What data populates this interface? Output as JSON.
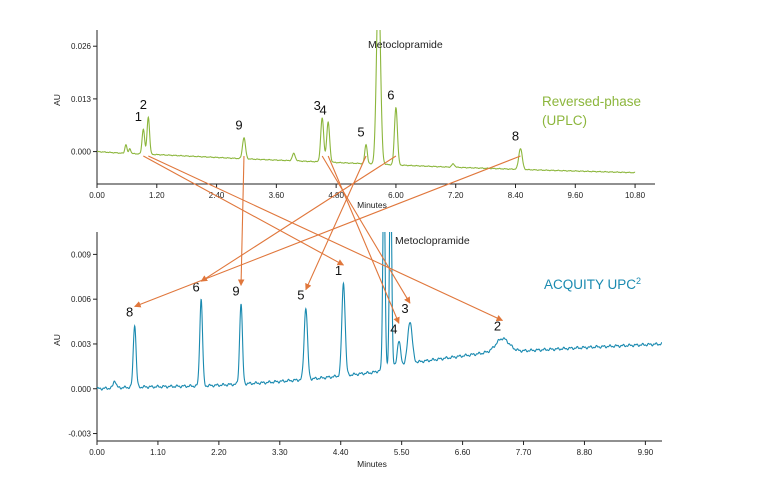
{
  "chart_data": [
    {
      "type": "line",
      "method_label_line1": "Reversed-phase",
      "method_label_line2": "(UPLC)",
      "color": "#8cb63c",
      "xlabel": "Minutes",
      "ylabel": "AU",
      "xlim": [
        0,
        11.2
      ],
      "ylim": [
        -0.008,
        0.03
      ],
      "x_ticks": [
        "0.00",
        "1.20",
        "2.40",
        "3.60",
        "4.80",
        "6.00",
        "7.20",
        "8.40",
        "9.60",
        "10.80"
      ],
      "y_ticks": [
        "0.026",
        "0.013",
        "0.000"
      ],
      "y_tick_values": [
        0.026,
        0.013,
        0.0
      ],
      "annotation": "Metoclopramide",
      "baseline": [
        [
          0,
          0
        ],
        [
          0.5,
          -0.0004
        ],
        [
          1.3,
          -0.0008
        ],
        [
          3,
          -0.0018
        ],
        [
          5,
          -0.0028
        ],
        [
          7,
          -0.0038
        ],
        [
          9,
          -0.0046
        ],
        [
          10.8,
          -0.0052
        ]
      ],
      "peaks": [
        {
          "label": "",
          "x": 0.58,
          "h": 0.0022,
          "w": 0.02
        },
        {
          "label": "",
          "x": 0.66,
          "h": 0.0012,
          "w": 0.02
        },
        {
          "label": "1",
          "x": 0.93,
          "h": 0.0062,
          "w": 0.025
        },
        {
          "label": "2",
          "x": 1.03,
          "h": 0.0092,
          "w": 0.025
        },
        {
          "label": "9",
          "x": 2.95,
          "h": 0.0052,
          "w": 0.03
        },
        {
          "label": "",
          "x": 3.95,
          "h": 0.0018,
          "w": 0.03
        },
        {
          "label": "3",
          "x": 4.52,
          "h": 0.0108,
          "w": 0.03
        },
        {
          "label": "4",
          "x": 4.64,
          "h": 0.0098,
          "w": 0.03
        },
        {
          "label": "5",
          "x": 5.4,
          "h": 0.0048,
          "w": 0.025
        },
        {
          "label": "",
          "x": 5.65,
          "h": 0.045,
          "w": 0.04,
          "name": "Metoclopramide"
        },
        {
          "label": "6",
          "x": 6.0,
          "h": 0.0142,
          "w": 0.03
        },
        {
          "label": "",
          "x": 7.15,
          "h": 0.0008,
          "w": 0.03
        },
        {
          "label": "8",
          "x": 8.5,
          "h": 0.0052,
          "w": 0.035
        }
      ]
    },
    {
      "type": "line",
      "method_label": "ACQUITY UPC",
      "method_label_sup": "2",
      "color": "#1a8ab0",
      "xlabel": "Minutes",
      "ylabel": "AU",
      "xlim": [
        0,
        10.2
      ],
      "ylim": [
        -0.0035,
        0.0105
      ],
      "x_ticks": [
        "0.00",
        "1.10",
        "2.20",
        "3.30",
        "4.40",
        "5.50",
        "6.60",
        "7.70",
        "8.80",
        "9.90"
      ],
      "y_ticks": [
        "0.009",
        "0.006",
        "0.003",
        "0.000",
        "-0.003"
      ],
      "y_tick_values": [
        0.009,
        0.006,
        0.003,
        0.0,
        -0.003
      ],
      "annotation": "Metoclopramide",
      "baseline": [
        [
          0,
          0
        ],
        [
          0.6,
          0.0001
        ],
        [
          2,
          0.0002
        ],
        [
          3,
          0.0004
        ],
        [
          4,
          0.0007
        ],
        [
          5,
          0.0011
        ],
        [
          5.35,
          0.0015
        ],
        [
          5.6,
          0.0017
        ],
        [
          6,
          0.0019
        ],
        [
          7,
          0.0024
        ],
        [
          8,
          0.0026
        ],
        [
          9,
          0.0028
        ],
        [
          10.2,
          0.003
        ]
      ],
      "peaks": [
        {
          "label": "",
          "x": 0.32,
          "h": 0.0005,
          "w": 0.025
        },
        {
          "label": "8",
          "x": 0.68,
          "h": 0.0042,
          "w": 0.025
        },
        {
          "label": "6",
          "x": 1.88,
          "h": 0.0058,
          "w": 0.025
        },
        {
          "label": "9",
          "x": 2.6,
          "h": 0.0054,
          "w": 0.025
        },
        {
          "label": "5",
          "x": 3.77,
          "h": 0.0048,
          "w": 0.03
        },
        {
          "label": "1",
          "x": 4.45,
          "h": 0.0062,
          "w": 0.03
        },
        {
          "label": "",
          "x": 5.18,
          "h": 0.0135,
          "w": 0.02,
          "name": "Metoclopramide"
        },
        {
          "label": "",
          "x": 5.3,
          "h": 0.0135,
          "w": 0.02
        },
        {
          "label": "4",
          "x": 5.45,
          "h": 0.0016,
          "w": 0.03
        },
        {
          "label": "3",
          "x": 5.65,
          "h": 0.0028,
          "w": 0.04
        },
        {
          "label": "2",
          "x": 7.32,
          "h": 0.0009,
          "w": 0.12
        }
      ]
    }
  ]
}
